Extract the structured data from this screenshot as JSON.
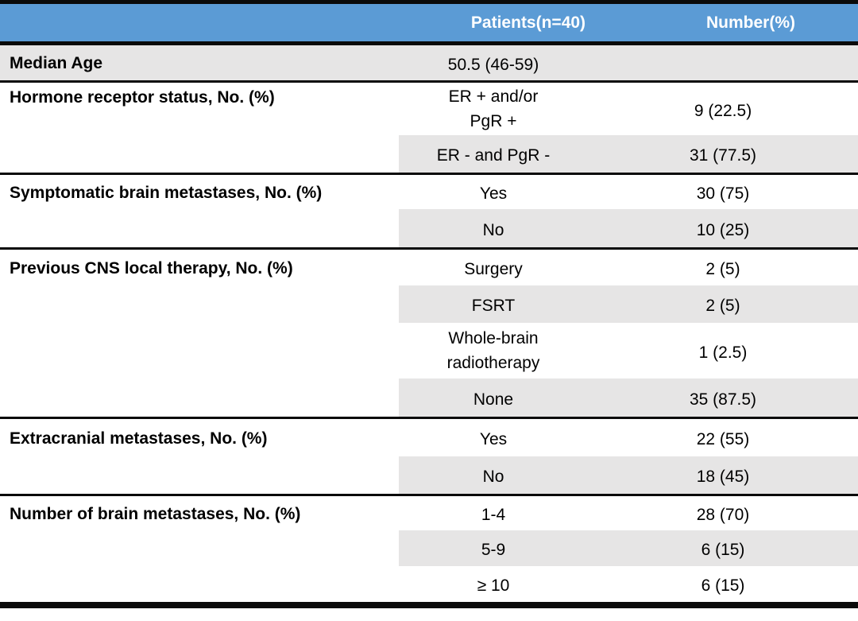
{
  "header": {
    "col1": "",
    "patients": "Patients(n=40)",
    "number": "Number(%)"
  },
  "colors": {
    "header_bg": "#5B9BD5",
    "header_text": "#FFFFFF",
    "band_bg": "#E6E5E5",
    "border": "#0A0A0A",
    "body_text": "#000000"
  },
  "sections": [
    {
      "label": "Median Age",
      "rows": [
        {
          "value": "50.5 (46-59)",
          "number": ""
        }
      ]
    },
    {
      "label": "Hormone receptor status, No. (%)",
      "rows": [
        {
          "value": "ER + and/or\nPgR +",
          "number": "9 (22.5)"
        },
        {
          "value": "ER - and PgR -",
          "number": "31 (77.5)"
        }
      ]
    },
    {
      "label": "Symptomatic brain metastases, No. (%)",
      "rows": [
        {
          "value": "Yes",
          "number": "30 (75)"
        },
        {
          "value": "No",
          "number": "10 (25)"
        }
      ]
    },
    {
      "label": "Previous CNS local therapy, No. (%)",
      "rows": [
        {
          "value": "Surgery",
          "number": "2 (5)"
        },
        {
          "value": "FSRT",
          "number": "2 (5)"
        },
        {
          "value": "Whole-brain\nradiotherapy",
          "number": "1 (2.5)"
        },
        {
          "value": "None",
          "number": "35 (87.5)"
        }
      ]
    },
    {
      "label": "Extracranial metastases, No. (%)",
      "rows": [
        {
          "value": "Yes",
          "number": "22 (55)"
        },
        {
          "value": "No",
          "number": "18 (45)"
        }
      ]
    },
    {
      "label": "Number of brain metastases, No. (%)",
      "rows": [
        {
          "value": "1-4",
          "number": "28 (70)"
        },
        {
          "value": "5-9",
          "number": "6 (15)"
        },
        {
          "value": "≥ 10",
          "number": "6 (15)"
        }
      ]
    }
  ]
}
